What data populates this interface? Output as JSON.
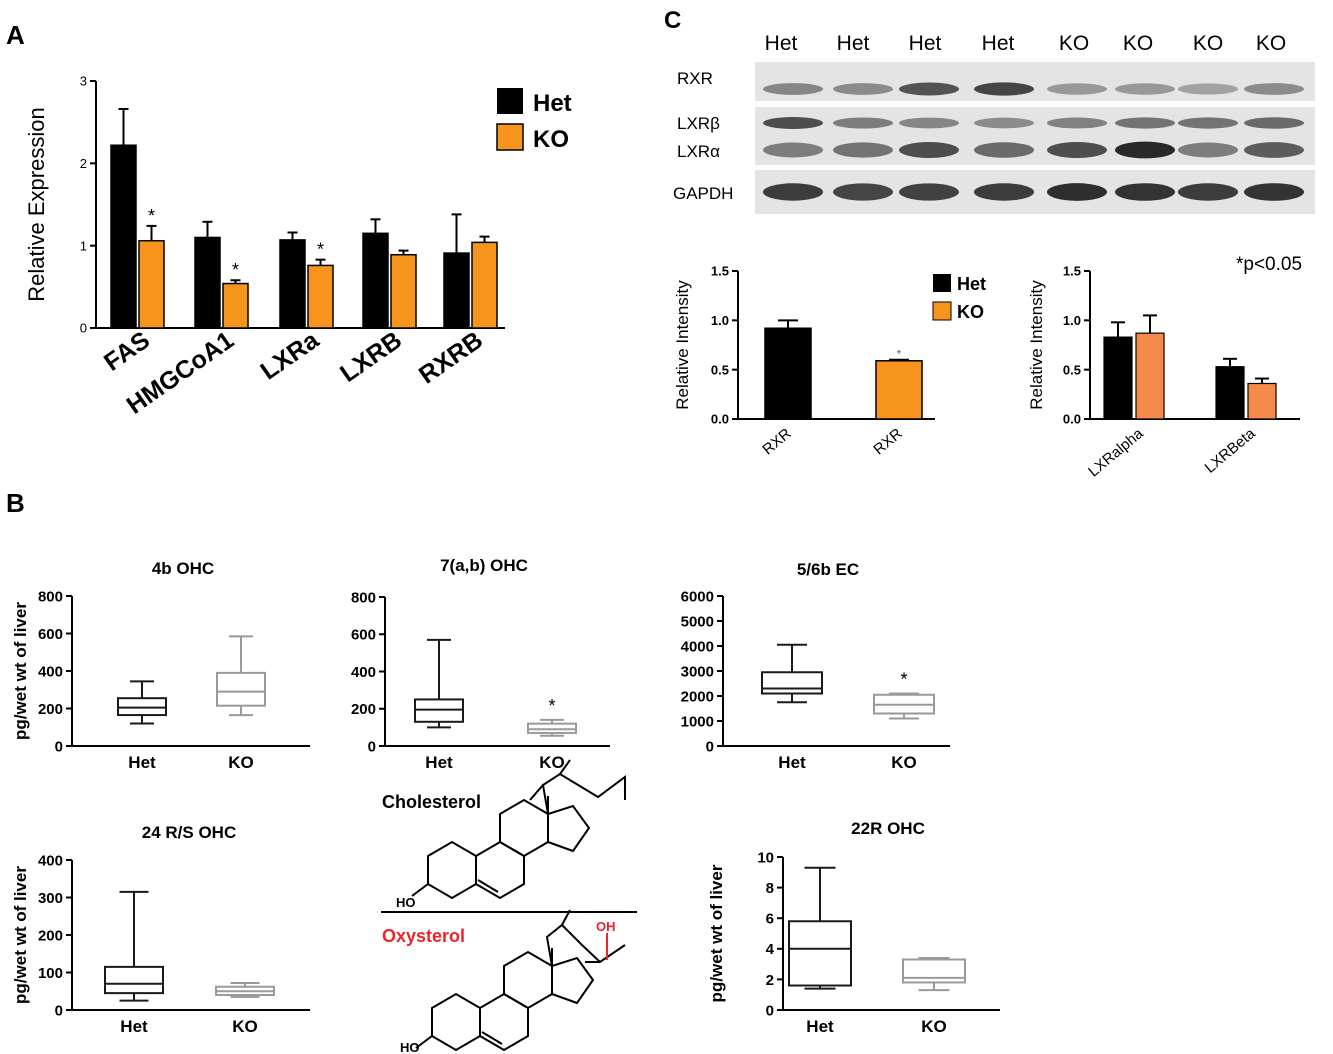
{
  "panels": {
    "a": "A",
    "b": "B",
    "c": "C"
  },
  "colors": {
    "het": "#000000",
    "ko": "#f7941d",
    "ko_light": "#f58a4b",
    "box_het": "#1a1a1a",
    "box_ko": "#9a9a9a",
    "blot_bg": "#e4e4e4",
    "oh_red": "#e8262d",
    "text": "#000000"
  },
  "western_blot": {
    "lane_labels": [
      "Het",
      "Het",
      "Het",
      "Het",
      "KO",
      "KO",
      "KO",
      "KO"
    ],
    "rows": [
      {
        "label": "RXR",
        "band_intensity": [
          0.45,
          0.42,
          0.72,
          0.8,
          0.35,
          0.35,
          0.3,
          0.42
        ]
      },
      {
        "label": "LXRβ",
        "band_intensity": [
          0.75,
          0.5,
          0.45,
          0.42,
          0.48,
          0.55,
          0.55,
          0.6
        ]
      },
      {
        "label": "LXRα",
        "band_intensity": [
          0.5,
          0.55,
          0.75,
          0.6,
          0.75,
          0.95,
          0.5,
          0.68
        ]
      },
      {
        "label": "GAPDH",
        "band_intensity": [
          0.85,
          0.8,
          0.82,
          0.85,
          0.92,
          0.9,
          0.85,
          0.9
        ]
      }
    ]
  },
  "legend_a": {
    "het": "Het",
    "ko": "KO"
  },
  "legend_c": {
    "het": "Het",
    "ko": "KO"
  },
  "pvalue_note": "*p<0.05",
  "structures": {
    "top_label": "Cholesterol",
    "bottom_label": "Oxysterol",
    "ho": "HO",
    "oh": "OH"
  },
  "chart_data": [
    {
      "id": "A",
      "type": "bar",
      "categories": [
        "FAS",
        "HMGCoA1",
        "LXRa",
        "LXRB",
        "RXRB"
      ],
      "series": [
        {
          "name": "Het",
          "values": [
            2.22,
            1.1,
            1.07,
            1.15,
            0.91
          ],
          "errors": [
            0.44,
            0.19,
            0.09,
            0.17,
            0.47
          ]
        },
        {
          "name": "KO",
          "values": [
            1.06,
            0.54,
            0.76,
            0.89,
            1.04
          ],
          "errors": [
            0.18,
            0.04,
            0.07,
            0.05,
            0.07
          ]
        }
      ],
      "significance": [
        "*",
        "*",
        "*",
        "",
        ""
      ],
      "ylabel": "Relative Expression",
      "ylim": [
        0,
        3
      ],
      "yticks": [
        "0",
        "1",
        "2",
        "3"
      ]
    },
    {
      "id": "C1",
      "type": "bar",
      "categories": [
        "RXR",
        "RXR"
      ],
      "values": [
        0.92,
        0.59
      ],
      "errors": [
        0.08,
        0.01
      ],
      "colors": [
        "het",
        "ko"
      ],
      "significance": [
        "",
        "*"
      ],
      "ylabel": "Relative Intensity",
      "ylim": [
        0,
        1.5
      ],
      "yticks": [
        "0.0",
        "0.5",
        "1.0",
        "1.5"
      ]
    },
    {
      "id": "C2",
      "type": "bar",
      "categories": [
        "LXRalpha",
        "LXRBeta"
      ],
      "series": [
        {
          "name": "Het",
          "values": [
            0.83,
            0.53
          ],
          "errors": [
            0.15,
            0.08
          ]
        },
        {
          "name": "KO",
          "values": [
            0.87,
            0.36
          ],
          "errors": [
            0.18,
            0.05
          ]
        }
      ],
      "ylabel": "Relative Intensity",
      "ylim": [
        0,
        1.5
      ],
      "yticks": [
        "0.0",
        "0.5",
        "1.0",
        "1.5"
      ]
    },
    {
      "id": "B1",
      "type": "box",
      "title": "4b OHC",
      "categories": [
        "Het",
        "KO"
      ],
      "boxes": [
        {
          "min": 120,
          "q1": 165,
          "median": 205,
          "q3": 255,
          "max": 345
        },
        {
          "min": 165,
          "q1": 215,
          "median": 290,
          "q3": 390,
          "max": 585
        }
      ],
      "significance": [
        "",
        ""
      ],
      "ylabel": "pg/wet wt of liver",
      "ylim": [
        0,
        800
      ],
      "yticks": [
        "0",
        "200",
        "400",
        "600",
        "800"
      ]
    },
    {
      "id": "B2",
      "type": "box",
      "title": "7(a,b) OHC",
      "categories": [
        "Het",
        "KO"
      ],
      "boxes": [
        {
          "min": 100,
          "q1": 130,
          "median": 195,
          "q3": 250,
          "max": 570
        },
        {
          "min": 55,
          "q1": 70,
          "median": 90,
          "q3": 120,
          "max": 140
        }
      ],
      "significance": [
        "",
        "*"
      ],
      "ylabel": "",
      "ylim": [
        0,
        800
      ],
      "yticks": [
        "0",
        "200",
        "400",
        "600",
        "800"
      ]
    },
    {
      "id": "B3",
      "type": "box",
      "title": "5/6b EC",
      "categories": [
        "Het",
        "KO"
      ],
      "boxes": [
        {
          "min": 1750,
          "q1": 2100,
          "median": 2300,
          "q3": 2950,
          "max": 4050
        },
        {
          "min": 1100,
          "q1": 1300,
          "median": 1650,
          "q3": 2050,
          "max": 2100
        }
      ],
      "significance": [
        "",
        "*"
      ],
      "ylabel": "",
      "ylim": [
        0,
        6000
      ],
      "yticks": [
        "0",
        "1000",
        "2000",
        "3000",
        "4000",
        "5000",
        "6000"
      ]
    },
    {
      "id": "B4",
      "type": "box",
      "title": "24 R/S OHC",
      "categories": [
        "Het",
        "KO"
      ],
      "boxes": [
        {
          "min": 25,
          "q1": 45,
          "median": 70,
          "q3": 115,
          "max": 315
        },
        {
          "min": 35,
          "q1": 40,
          "median": 50,
          "q3": 62,
          "max": 72
        }
      ],
      "significance": [
        "",
        ""
      ],
      "ylabel": "pg/wet wt of liver",
      "ylim": [
        0,
        400
      ],
      "yticks": [
        "0",
        "100",
        "200",
        "300",
        "400"
      ]
    },
    {
      "id": "B5",
      "type": "box",
      "title": "22R OHC",
      "categories": [
        "Het",
        "KO"
      ],
      "boxes": [
        {
          "min": 1.4,
          "q1": 1.6,
          "median": 4.0,
          "q3": 5.8,
          "max": 9.3
        },
        {
          "min": 1.3,
          "q1": 1.8,
          "median": 2.1,
          "q3": 3.3,
          "max": 3.4
        }
      ],
      "significance": [
        "",
        ""
      ],
      "ylabel": "pg/wet wt of liver",
      "ylim": [
        0,
        10
      ],
      "yticks": [
        "0",
        "2",
        "4",
        "6",
        "8",
        "10"
      ]
    }
  ]
}
